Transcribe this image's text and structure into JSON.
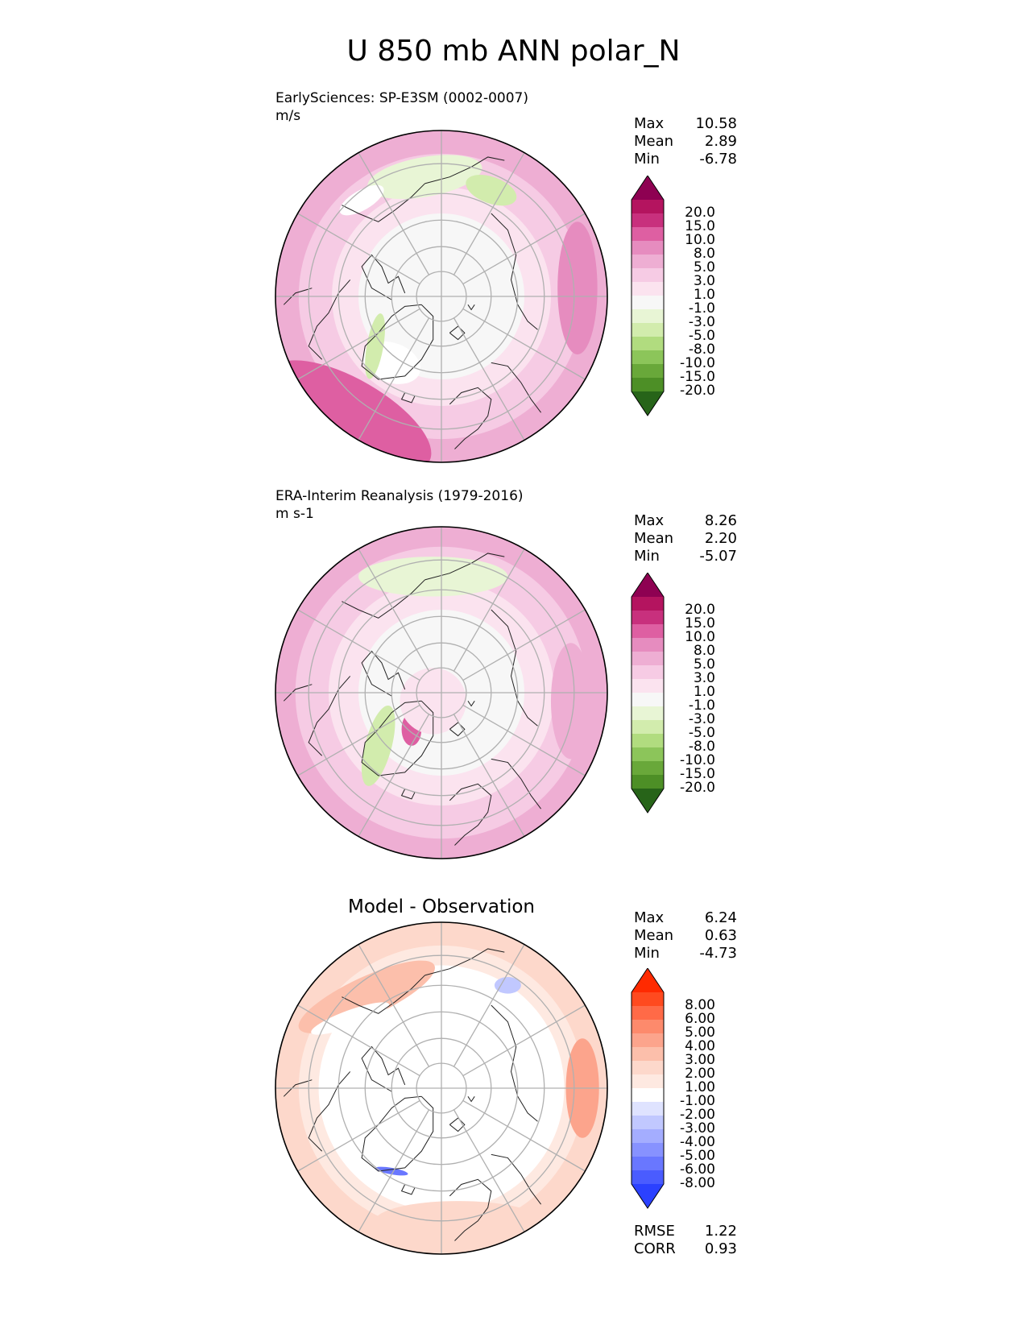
{
  "figure_title": "U 850 mb ANN polar_N",
  "panels": [
    {
      "title": "EarlySciences: SP-E3SM (0002-0007)",
      "units": "m/s",
      "stats": [
        {
          "label": "Max",
          "value": "10.58"
        },
        {
          "label": "Mean",
          "value": "2.89"
        },
        {
          "label": "Min",
          "value": "-6.78"
        }
      ],
      "colorbar": {
        "labels": [
          "20.0",
          "15.0",
          "10.0",
          "8.0",
          "5.0",
          "3.0",
          "1.0",
          "-1.0",
          "-3.0",
          "-5.0",
          "-8.0",
          "-10.0",
          "-15.0",
          "-20.0"
        ],
        "colors": [
          "#8e0152",
          "#b4145f",
          "#c8307d",
          "#de5fa2",
          "#e68cbf",
          "#eeaed3",
          "#f6cbe4",
          "#fbe3ef",
          "#f7f7f7",
          "#e8f5d5",
          "#d2ecad",
          "#b1dc7f",
          "#8cc55a",
          "#69a83a",
          "#4d8f26",
          "#276419"
        ]
      }
    },
    {
      "title": "ERA-Interim Reanalysis (1979-2016)",
      "units": "m s-1",
      "stats": [
        {
          "label": "Max",
          "value": "8.26"
        },
        {
          "label": "Mean",
          "value": "2.20"
        },
        {
          "label": "Min",
          "value": "-5.07"
        }
      ],
      "colorbar": {
        "labels": [
          "20.0",
          "15.0",
          "10.0",
          "8.0",
          "5.0",
          "3.0",
          "1.0",
          "-1.0",
          "-3.0",
          "-5.0",
          "-8.0",
          "-10.0",
          "-15.0",
          "-20.0"
        ],
        "colors": [
          "#8e0152",
          "#b4145f",
          "#c8307d",
          "#de5fa2",
          "#e68cbf",
          "#eeaed3",
          "#f6cbe4",
          "#fbe3ef",
          "#f7f7f7",
          "#e8f5d5",
          "#d2ecad",
          "#b1dc7f",
          "#8cc55a",
          "#69a83a",
          "#4d8f26",
          "#276419"
        ]
      }
    },
    {
      "title": "Model - Observation",
      "units": "",
      "stats": [
        {
          "label": "Max",
          "value": "6.24"
        },
        {
          "label": "Mean",
          "value": "0.63"
        },
        {
          "label": "Min",
          "value": "-4.73"
        }
      ],
      "metrics": [
        {
          "label": "RMSE",
          "value": "1.22"
        },
        {
          "label": "CORR",
          "value": "0.93"
        }
      ],
      "colorbar": {
        "labels": [
          "8.00",
          "6.00",
          "5.00",
          "4.00",
          "3.00",
          "2.00",
          "1.00",
          "-1.00",
          "-2.00",
          "-3.00",
          "-4.00",
          "-5.00",
          "-6.00",
          "-8.00"
        ],
        "colors": [
          "#ff2a00",
          "#ff4a1f",
          "#ff6a47",
          "#fd8a6c",
          "#fca48c",
          "#fcbfab",
          "#fdd8cb",
          "#fee9e1",
          "#ffffff",
          "#dfe3ff",
          "#c1c8ff",
          "#a4adff",
          "#8792ff",
          "#6977ff",
          "#4a5cff",
          "#2b41ff"
        ]
      }
    }
  ],
  "chart_data": [
    {
      "type": "heatmap",
      "title": "EarlySciences: SP-E3SM (0002-0007)",
      "units": "m/s",
      "projection": "north polar stereographic",
      "levels": [
        -20,
        -15,
        -10,
        -8,
        -5,
        -3,
        -1,
        1,
        3,
        5,
        8,
        10,
        15,
        20
      ],
      "max": 10.58,
      "mean": 2.89,
      "min": -6.78
    },
    {
      "type": "heatmap",
      "title": "ERA-Interim Reanalysis (1979-2016)",
      "units": "m s-1",
      "projection": "north polar stereographic",
      "levels": [
        -20,
        -15,
        -10,
        -8,
        -5,
        -3,
        -1,
        1,
        3,
        5,
        8,
        10,
        15,
        20
      ],
      "max": 8.26,
      "mean": 2.2,
      "min": -5.07
    },
    {
      "type": "heatmap",
      "title": "Model - Observation",
      "projection": "north polar stereographic",
      "levels": [
        -8,
        -6,
        -5,
        -4,
        -3,
        -2,
        -1,
        1,
        2,
        3,
        4,
        5,
        6,
        8
      ],
      "max": 6.24,
      "mean": 0.63,
      "min": -4.73,
      "rmse": 1.22,
      "corr": 0.93
    }
  ]
}
